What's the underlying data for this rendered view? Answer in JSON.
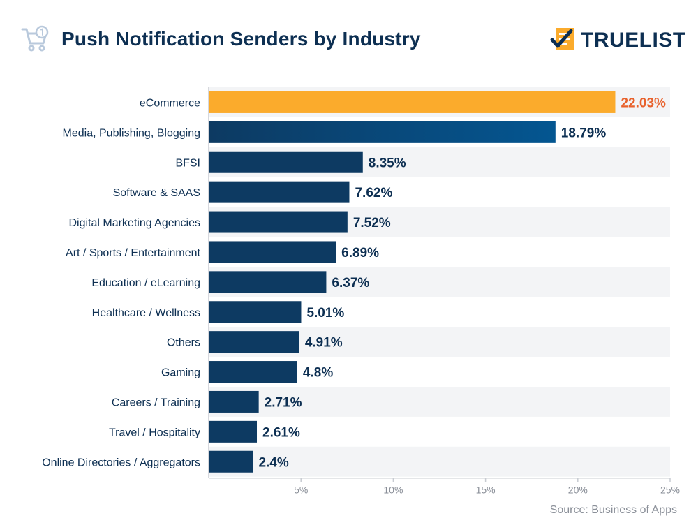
{
  "header": {
    "title": "Push Notification Senders by Industry",
    "brand": "TRUELIST"
  },
  "source": "Source: Business of Apps",
  "colors": {
    "highlight_bar": "#fbab2c",
    "highlight_label": "#e8612c",
    "bar": "#0d3a62",
    "bar_gradient_end": "#045691",
    "label_text": "#0d2f52",
    "row_band": "#f3f4f6",
    "axis": "#c8ccd2",
    "tick_text": "#8a8f98"
  },
  "chart_data": {
    "type": "bar",
    "orientation": "horizontal",
    "title": "Push Notification Senders by Industry",
    "xlabel": "",
    "ylabel": "",
    "xlim": [
      0,
      25
    ],
    "xticks": [
      5,
      10,
      15,
      20,
      25
    ],
    "xtick_labels": [
      "5%",
      "10%",
      "15%",
      "20%",
      "25%"
    ],
    "categories": [
      "eCommerce",
      "Media, Publishing, Blogging",
      "BFSI",
      "Software & SAAS",
      "Digital Marketing Agencies",
      "Art / Sports / Entertainment",
      "Education / eLearning",
      "Healthcare / Wellness",
      "Others",
      "Gaming",
      "Careers / Training",
      "Travel / Hospitality",
      "Online Directories / Aggregators"
    ],
    "values": [
      22.03,
      18.79,
      8.35,
      7.62,
      7.52,
      6.89,
      6.37,
      5.01,
      4.91,
      4.8,
      2.71,
      2.61,
      2.4
    ],
    "value_labels": [
      "22.03%",
      "18.79%",
      "8.35%",
      "7.62%",
      "7.52%",
      "6.89%",
      "6.37%",
      "5.01%",
      "4.91%",
      "4.8%",
      "2.71%",
      "2.61%",
      "2.4%"
    ],
    "highlight_index": 0,
    "gradient_index": 1
  }
}
